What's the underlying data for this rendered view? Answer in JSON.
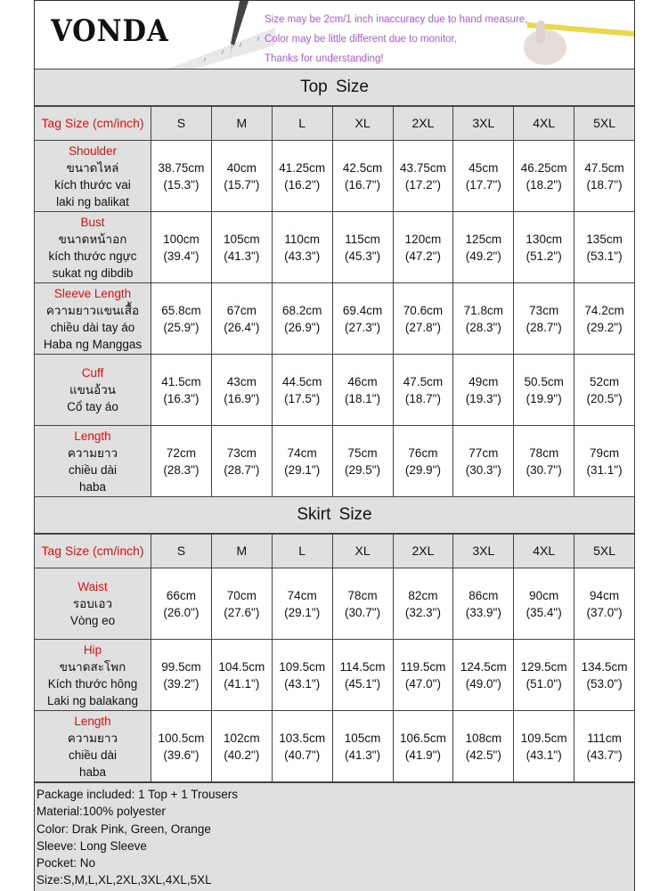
{
  "banner": {
    "logo": "VONDA",
    "notes": [
      "Size may be 2cm/1 inch inaccuracy due to hand measure,",
      "Color may be little different due to monitor,",
      "Thanks for understanding!"
    ],
    "note_color": "#b05ad8"
  },
  "accent_color": "#e01010",
  "top": {
    "title": "Top  Size",
    "tag_label": "Tag Size (cm/inch)",
    "sizes": [
      "S",
      "M",
      "L",
      "XL",
      "2XL",
      "3XL",
      "4XL",
      "5XL"
    ],
    "rows": [
      {
        "name": "Shoulder",
        "translations": [
          "ขนาดไหล่",
          "kích thước vai",
          "laki ng balikat"
        ],
        "values": [
          [
            "38.75cm",
            "(15.3\")"
          ],
          [
            "40cm",
            "(15.7\")"
          ],
          [
            "41.25cm",
            "(16.2\")"
          ],
          [
            "42.5cm",
            "(16.7\")"
          ],
          [
            "43.75cm",
            "(17.2\")"
          ],
          [
            "45cm",
            "(17.7\")"
          ],
          [
            "46.25cm",
            "(18.2\")"
          ],
          [
            "47.5cm",
            "(18.7\")"
          ]
        ]
      },
      {
        "name": "Bust",
        "translations": [
          "ขนาดหน้าอก",
          "kích thước ngực",
          "sukat ng dibdib"
        ],
        "values": [
          [
            "100cm",
            "(39.4\")"
          ],
          [
            "105cm",
            "(41.3\")"
          ],
          [
            "110cm",
            "(43.3\")"
          ],
          [
            "115cm",
            "(45.3\")"
          ],
          [
            "120cm",
            "(47.2\")"
          ],
          [
            "125cm",
            "(49.2\")"
          ],
          [
            "130cm",
            "(51.2\")"
          ],
          [
            "135cm",
            "(53.1\")"
          ]
        ]
      },
      {
        "name": "Sleeve Length",
        "translations": [
          "ความยาวแขนเสื้อ",
          "chiều dài tay áo",
          "Haba ng Manggas"
        ],
        "values": [
          [
            "65.8cm",
            "(25.9\")"
          ],
          [
            "67cm",
            "(26.4\")"
          ],
          [
            "68.2cm",
            "(26.9\")"
          ],
          [
            "69.4cm",
            "(27.3\")"
          ],
          [
            "70.6cm",
            "(27.8\")"
          ],
          [
            "71.8cm",
            "(28.3\")"
          ],
          [
            "73cm",
            "(28.7\")"
          ],
          [
            "74.2cm",
            "(29.2\")"
          ]
        ]
      },
      {
        "name": "Cuff",
        "translations": [
          "แขนอ้วน",
          "Cổ tay áo"
        ],
        "values": [
          [
            "41.5cm",
            "(16.3\")"
          ],
          [
            "43cm",
            "(16.9\")"
          ],
          [
            "44.5cm",
            "(17.5\")"
          ],
          [
            "46cm",
            "(18.1\")"
          ],
          [
            "47.5cm",
            "(18.7\")"
          ],
          [
            "49cm",
            "(19.3\")"
          ],
          [
            "50.5cm",
            "(19.9\")"
          ],
          [
            "52cm",
            "(20.5\")"
          ]
        ]
      },
      {
        "name": "Length",
        "translations": [
          "ความยาว",
          "chiều dài",
          "haba"
        ],
        "values": [
          [
            "72cm",
            "(28.3\")"
          ],
          [
            "73cm",
            "(28.7\")"
          ],
          [
            "74cm",
            "(29.1\")"
          ],
          [
            "75cm",
            "(29.5\")"
          ],
          [
            "76cm",
            "(29.9\")"
          ],
          [
            "77cm",
            "(30.3\")"
          ],
          [
            "78cm",
            "(30.7\")"
          ],
          [
            "79cm",
            "(31.1\")"
          ]
        ]
      }
    ]
  },
  "skirt": {
    "title": "Skirt  Size",
    "tag_label": "Tag Size (cm/inch)",
    "sizes": [
      "S",
      "M",
      "L",
      "XL",
      "2XL",
      "3XL",
      "4XL",
      "5XL"
    ],
    "rows": [
      {
        "name": "Waist",
        "translations": [
          "รอบเอว",
          "Vòng eo"
        ],
        "values": [
          [
            "66cm",
            "(26.0\")"
          ],
          [
            "70cm",
            "(27.6\")"
          ],
          [
            "74cm",
            "(29.1\")"
          ],
          [
            "78cm",
            "(30.7\")"
          ],
          [
            "82cm",
            "(32.3\")"
          ],
          [
            "86cm",
            "(33.9\")"
          ],
          [
            "90cm",
            "(35.4\")"
          ],
          [
            "94cm",
            "(37.0\")"
          ]
        ]
      },
      {
        "name": "Hip",
        "translations": [
          "ขนาดสะโพก",
          "Kích thước hông",
          "Laki ng balakang"
        ],
        "values": [
          [
            "99.5cm",
            "(39.2\")"
          ],
          [
            "104.5cm",
            "(41.1\")"
          ],
          [
            "109.5cm",
            "(43.1\")"
          ],
          [
            "114.5cm",
            "(45.1\")"
          ],
          [
            "119.5cm",
            "(47.0\")"
          ],
          [
            "124.5cm",
            "(49.0\")"
          ],
          [
            "129.5cm",
            "(51.0\")"
          ],
          [
            "134.5cm",
            "(53.0\")"
          ]
        ]
      },
      {
        "name": "Length",
        "translations": [
          "ความยาว",
          "chiều dài",
          "haba"
        ],
        "values": [
          [
            "100.5cm",
            "(39.6\")"
          ],
          [
            "102cm",
            "(40.2\")"
          ],
          [
            "103.5cm",
            "(40.7\")"
          ],
          [
            "105cm",
            "(41.3\")"
          ],
          [
            "106.5cm",
            "(41.9\")"
          ],
          [
            "108cm",
            "(42.5\")"
          ],
          [
            "109.5cm",
            "(43.1\")"
          ],
          [
            "111cm",
            "(43.7\")"
          ]
        ]
      }
    ]
  },
  "footer": [
    "Package included: 1 Top + 1 Trousers",
    "Material:100% polyester",
    "Color: Drak Pink, Green, Orange",
    "Sleeve: Long Sleeve",
    "Pocket: No",
    "Size:S,M,L,XL,2XL,3XL,4XL,5XL"
  ]
}
